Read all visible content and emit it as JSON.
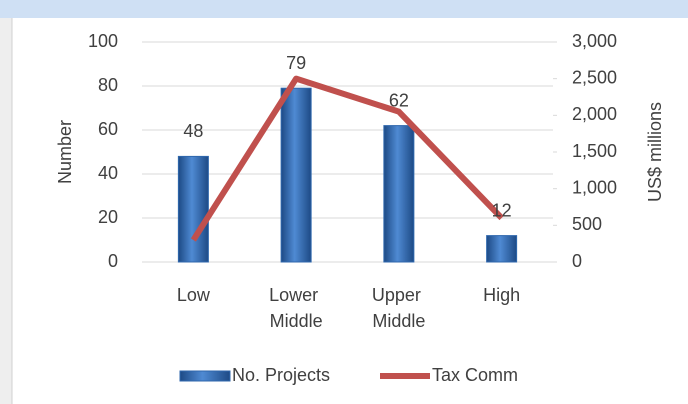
{
  "chart_data": {
    "type": "combo",
    "categories": [
      "Low",
      "Lower Middle",
      "Upper Middle",
      "High"
    ],
    "series": [
      {
        "name": "No. Projects",
        "type": "bar",
        "color": "#2f67ad",
        "values": [
          48,
          79,
          62,
          12
        ]
      },
      {
        "name": "Tax Comm",
        "type": "line",
        "axis": "y2",
        "color": "#c0504d",
        "values": [
          300,
          2500,
          2050,
          600
        ]
      }
    ],
    "ylabel": "Number",
    "y2label": "US$ millions",
    "ylim": [
      0,
      100
    ],
    "yticks": [
      0,
      20,
      40,
      60,
      80,
      100
    ],
    "y2lim": [
      0,
      3000
    ],
    "y2ticks": [
      0,
      500,
      {
        "value": 1000,
        "label": "1,000"
      },
      {
        "value": 1500,
        "label": "1,500"
      },
      {
        "value": 2000,
        "label": "2,000"
      },
      {
        "value": 2500,
        "label": "2,500"
      },
      {
        "value": 3000,
        "label": "3,000"
      }
    ],
    "grid": true,
    "legend": "bottom"
  }
}
